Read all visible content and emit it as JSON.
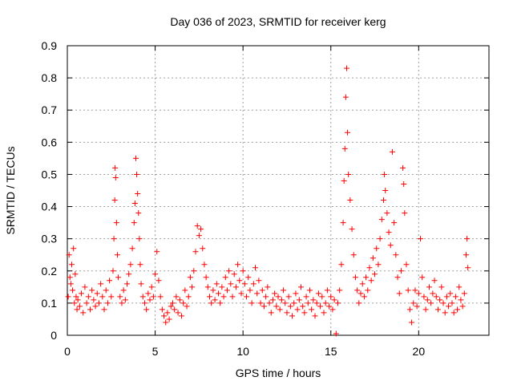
{
  "chart_data": {
    "type": "scatter",
    "title": "Day 036 of 2023, SRMTID for receiver kerg",
    "xlabel": "GPS time / hours",
    "ylabel": "SRMTID / TECUs",
    "xlim": [
      0,
      24
    ],
    "ylim": [
      0,
      0.9
    ],
    "xticks": [
      0,
      5,
      10,
      15,
      20
    ],
    "yticks": [
      0,
      0.1,
      0.2,
      0.3,
      0.4,
      0.5,
      0.6,
      0.7,
      0.8,
      0.9
    ],
    "xtick_labels": [
      "0",
      "5",
      "10",
      "15",
      "20"
    ],
    "ytick_labels": [
      "0",
      "0.1",
      "0.2",
      "0.3",
      "0.4",
      "0.5",
      "0.6",
      "0.7",
      "0.8",
      "0.9"
    ],
    "grid": true,
    "marker": "+",
    "color": "#ff0000",
    "series": [
      {
        "name": "SRMTID",
        "points": [
          [
            0.05,
            0.12
          ],
          [
            0.1,
            0.25
          ],
          [
            0.15,
            0.18
          ],
          [
            0.2,
            0.16
          ],
          [
            0.25,
            0.22
          ],
          [
            0.3,
            0.14
          ],
          [
            0.35,
            0.27
          ],
          [
            0.4,
            0.1
          ],
          [
            0.45,
            0.19
          ],
          [
            0.5,
            0.12
          ],
          [
            0.55,
            0.08
          ],
          [
            0.6,
            0.11
          ],
          [
            0.7,
            0.09
          ],
          [
            0.8,
            0.13
          ],
          [
            0.9,
            0.07
          ],
          [
            1.0,
            0.15
          ],
          [
            1.1,
            0.1
          ],
          [
            1.2,
            0.12
          ],
          [
            1.3,
            0.08
          ],
          [
            1.4,
            0.14
          ],
          [
            1.5,
            0.11
          ],
          [
            1.6,
            0.09
          ],
          [
            1.7,
            0.13
          ],
          [
            1.8,
            0.1
          ],
          [
            1.9,
            0.16
          ],
          [
            2.0,
            0.12
          ],
          [
            2.1,
            0.08
          ],
          [
            2.2,
            0.14
          ],
          [
            2.3,
            0.1
          ],
          [
            2.4,
            0.17
          ],
          [
            2.5,
            0.12
          ],
          [
            2.6,
            0.2
          ],
          [
            2.65,
            0.3
          ],
          [
            2.7,
            0.42
          ],
          [
            2.72,
            0.52
          ],
          [
            2.75,
            0.49
          ],
          [
            2.8,
            0.35
          ],
          [
            2.85,
            0.25
          ],
          [
            2.9,
            0.18
          ],
          [
            3.0,
            0.12
          ],
          [
            3.1,
            0.1
          ],
          [
            3.2,
            0.14
          ],
          [
            3.3,
            0.11
          ],
          [
            3.4,
            0.16
          ],
          [
            3.5,
            0.19
          ],
          [
            3.6,
            0.22
          ],
          [
            3.7,
            0.27
          ],
          [
            3.8,
            0.35
          ],
          [
            3.85,
            0.41
          ],
          [
            3.9,
            0.55
          ],
          [
            3.95,
            0.5
          ],
          [
            4.0,
            0.44
          ],
          [
            4.05,
            0.38
          ],
          [
            4.1,
            0.3
          ],
          [
            4.15,
            0.22
          ],
          [
            4.2,
            0.16
          ],
          [
            4.3,
            0.12
          ],
          [
            4.4,
            0.1
          ],
          [
            4.5,
            0.08
          ],
          [
            4.6,
            0.13
          ],
          [
            4.7,
            0.11
          ],
          [
            4.8,
            0.15
          ],
          [
            4.9,
            0.12
          ],
          [
            5.0,
            0.19
          ],
          [
            5.1,
            0.26
          ],
          [
            5.2,
            0.17
          ],
          [
            5.3,
            0.12
          ],
          [
            5.4,
            0.08
          ],
          [
            5.5,
            0.06
          ],
          [
            5.6,
            0.04
          ],
          [
            5.7,
            0.07
          ],
          [
            5.8,
            0.05
          ],
          [
            5.9,
            0.09
          ],
          [
            6.0,
            0.1
          ],
          [
            6.1,
            0.08
          ],
          [
            6.2,
            0.12
          ],
          [
            6.3,
            0.07
          ],
          [
            6.4,
            0.11
          ],
          [
            6.5,
            0.06
          ],
          [
            6.6,
            0.1
          ],
          [
            6.7,
            0.14
          ],
          [
            6.8,
            0.09
          ],
          [
            6.9,
            0.12
          ],
          [
            7.0,
            0.18
          ],
          [
            7.1,
            0.15
          ],
          [
            7.2,
            0.2
          ],
          [
            7.3,
            0.26
          ],
          [
            7.4,
            0.34
          ],
          [
            7.5,
            0.31
          ],
          [
            7.6,
            0.33
          ],
          [
            7.7,
            0.27
          ],
          [
            7.8,
            0.22
          ],
          [
            7.9,
            0.18
          ],
          [
            8.0,
            0.15
          ],
          [
            8.1,
            0.12
          ],
          [
            8.2,
            0.1
          ],
          [
            8.3,
            0.14
          ],
          [
            8.4,
            0.11
          ],
          [
            8.5,
            0.16
          ],
          [
            8.6,
            0.13
          ],
          [
            8.7,
            0.1
          ],
          [
            8.8,
            0.15
          ],
          [
            8.9,
            0.12
          ],
          [
            9.0,
            0.18
          ],
          [
            9.1,
            0.14
          ],
          [
            9.2,
            0.2
          ],
          [
            9.3,
            0.16
          ],
          [
            9.4,
            0.12
          ],
          [
            9.5,
            0.19
          ],
          [
            9.6,
            0.15
          ],
          [
            9.7,
            0.22
          ],
          [
            9.8,
            0.17
          ],
          [
            9.9,
            0.13
          ],
          [
            10.0,
            0.2
          ],
          [
            10.1,
            0.16
          ],
          [
            10.2,
            0.12
          ],
          [
            10.3,
            0.18
          ],
          [
            10.4,
            0.14
          ],
          [
            10.5,
            0.1
          ],
          [
            10.6,
            0.16
          ],
          [
            10.7,
            0.21
          ],
          [
            10.8,
            0.13
          ],
          [
            10.9,
            0.17
          ],
          [
            11.0,
            0.1
          ],
          [
            11.1,
            0.14
          ],
          [
            11.2,
            0.09
          ],
          [
            11.3,
            0.12
          ],
          [
            11.4,
            0.15
          ],
          [
            11.5,
            0.1
          ],
          [
            11.6,
            0.07
          ],
          [
            11.7,
            0.11
          ],
          [
            11.8,
            0.13
          ],
          [
            11.9,
            0.09
          ],
          [
            12.0,
            0.12
          ],
          [
            12.1,
            0.08
          ],
          [
            12.2,
            0.11
          ],
          [
            12.3,
            0.14
          ],
          [
            12.4,
            0.1
          ],
          [
            12.5,
            0.07
          ],
          [
            12.6,
            0.12
          ],
          [
            12.7,
            0.09
          ],
          [
            12.8,
            0.06
          ],
          [
            12.9,
            0.1
          ],
          [
            13.0,
            0.13
          ],
          [
            13.1,
            0.08
          ],
          [
            13.2,
            0.11
          ],
          [
            13.3,
            0.15
          ],
          [
            13.4,
            0.09
          ],
          [
            13.5,
            0.07
          ],
          [
            13.6,
            0.12
          ],
          [
            13.7,
            0.1
          ],
          [
            13.8,
            0.14
          ],
          [
            13.9,
            0.08
          ],
          [
            14.0,
            0.11
          ],
          [
            14.1,
            0.06
          ],
          [
            14.2,
            0.1
          ],
          [
            14.3,
            0.13
          ],
          [
            14.4,
            0.09
          ],
          [
            14.5,
            0.12
          ],
          [
            14.6,
            0.07
          ],
          [
            14.7,
            0.1
          ],
          [
            14.8,
            0.14
          ],
          [
            14.9,
            0.09
          ],
          [
            15.0,
            0.12
          ],
          [
            15.1,
            0.08
          ],
          [
            15.2,
            0.11
          ],
          [
            15.3,
            0.005
          ],
          [
            15.4,
            0.1
          ],
          [
            15.5,
            0.14
          ],
          [
            15.6,
            0.22
          ],
          [
            15.7,
            0.35
          ],
          [
            15.75,
            0.48
          ],
          [
            15.8,
            0.58
          ],
          [
            15.85,
            0.74
          ],
          [
            15.9,
            0.83
          ],
          [
            15.95,
            0.63
          ],
          [
            16.0,
            0.5
          ],
          [
            16.1,
            0.42
          ],
          [
            16.2,
            0.33
          ],
          [
            16.3,
            0.25
          ],
          [
            16.4,
            0.18
          ],
          [
            16.5,
            0.14
          ],
          [
            16.6,
            0.1
          ],
          [
            16.7,
            0.13
          ],
          [
            16.8,
            0.16
          ],
          [
            16.9,
            0.12
          ],
          [
            17.0,
            0.18
          ],
          [
            17.1,
            0.14
          ],
          [
            17.2,
            0.21
          ],
          [
            17.3,
            0.17
          ],
          [
            17.4,
            0.24
          ],
          [
            17.5,
            0.19
          ],
          [
            17.6,
            0.27
          ],
          [
            17.7,
            0.22
          ],
          [
            17.8,
            0.3
          ],
          [
            17.9,
            0.36
          ],
          [
            18.0,
            0.42
          ],
          [
            18.05,
            0.5
          ],
          [
            18.1,
            0.45
          ],
          [
            18.2,
            0.38
          ],
          [
            18.3,
            0.32
          ],
          [
            18.4,
            0.28
          ],
          [
            18.5,
            0.57
          ],
          [
            18.6,
            0.35
          ],
          [
            18.7,
            0.25
          ],
          [
            18.8,
            0.18
          ],
          [
            18.9,
            0.13
          ],
          [
            19.0,
            0.2
          ],
          [
            19.1,
            0.52
          ],
          [
            19.15,
            0.47
          ],
          [
            19.2,
            0.38
          ],
          [
            19.3,
            0.22
          ],
          [
            19.4,
            0.14
          ],
          [
            19.5,
            0.08
          ],
          [
            19.6,
            0.04
          ],
          [
            19.7,
            0.1
          ],
          [
            19.8,
            0.14
          ],
          [
            19.9,
            0.09
          ],
          [
            20.0,
            0.13
          ],
          [
            20.1,
            0.3
          ],
          [
            20.2,
            0.18
          ],
          [
            20.3,
            0.12
          ],
          [
            20.4,
            0.08
          ],
          [
            20.5,
            0.11
          ],
          [
            20.6,
            0.15
          ],
          [
            20.7,
            0.1
          ],
          [
            20.8,
            0.13
          ],
          [
            20.9,
            0.17
          ],
          [
            21.0,
            0.12
          ],
          [
            21.1,
            0.08
          ],
          [
            21.2,
            0.11
          ],
          [
            21.3,
            0.15
          ],
          [
            21.4,
            0.1
          ],
          [
            21.5,
            0.07
          ],
          [
            21.6,
            0.12
          ],
          [
            21.7,
            0.09
          ],
          [
            21.8,
            0.13
          ],
          [
            21.9,
            0.1
          ],
          [
            22.0,
            0.07
          ],
          [
            22.1,
            0.12
          ],
          [
            22.2,
            0.08
          ],
          [
            22.3,
            0.15
          ],
          [
            22.4,
            0.11
          ],
          [
            22.5,
            0.09
          ],
          [
            22.6,
            0.13
          ],
          [
            22.7,
            0.25
          ],
          [
            22.75,
            0.3
          ],
          [
            22.8,
            0.21
          ]
        ]
      }
    ]
  }
}
